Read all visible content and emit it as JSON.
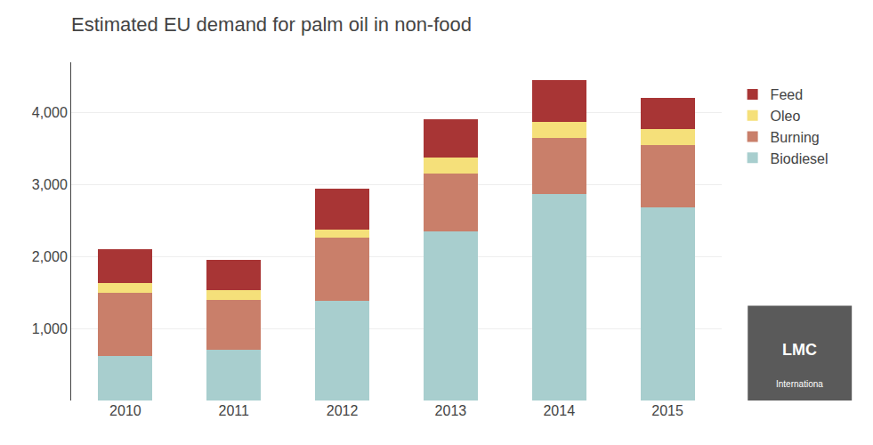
{
  "chart_data": {
    "type": "bar",
    "title": "Estimated EU demand for palm oil in non-food",
    "categories": [
      "2010",
      "2011",
      "2012",
      "2013",
      "2014",
      "2015"
    ],
    "series": [
      {
        "name": "Biodiesel",
        "color": "#a8cece",
        "values": [
          620,
          700,
          1380,
          2350,
          2870,
          2680
        ]
      },
      {
        "name": "Burning",
        "color": "#c97f6a",
        "values": [
          880,
          700,
          880,
          800,
          780,
          870
        ]
      },
      {
        "name": "Oleo",
        "color": "#f5e07a",
        "values": [
          130,
          130,
          110,
          230,
          220,
          220
        ]
      },
      {
        "name": "Feed",
        "color": "#a83535",
        "values": [
          470,
          430,
          570,
          530,
          580,
          440
        ]
      }
    ],
    "stacked": true,
    "ylim": [
      0,
      4700
    ],
    "yticks": [
      {
        "value": 1000,
        "label": "1,000"
      },
      {
        "value": 2000,
        "label": "2,000"
      },
      {
        "value": 3000,
        "label": "3,000"
      },
      {
        "value": 4000,
        "label": "4,000"
      }
    ],
    "grid": true,
    "legend": "upper right",
    "annotations": [
      {
        "text": "LMC"
      },
      {
        "text": "Internationa"
      }
    ]
  }
}
